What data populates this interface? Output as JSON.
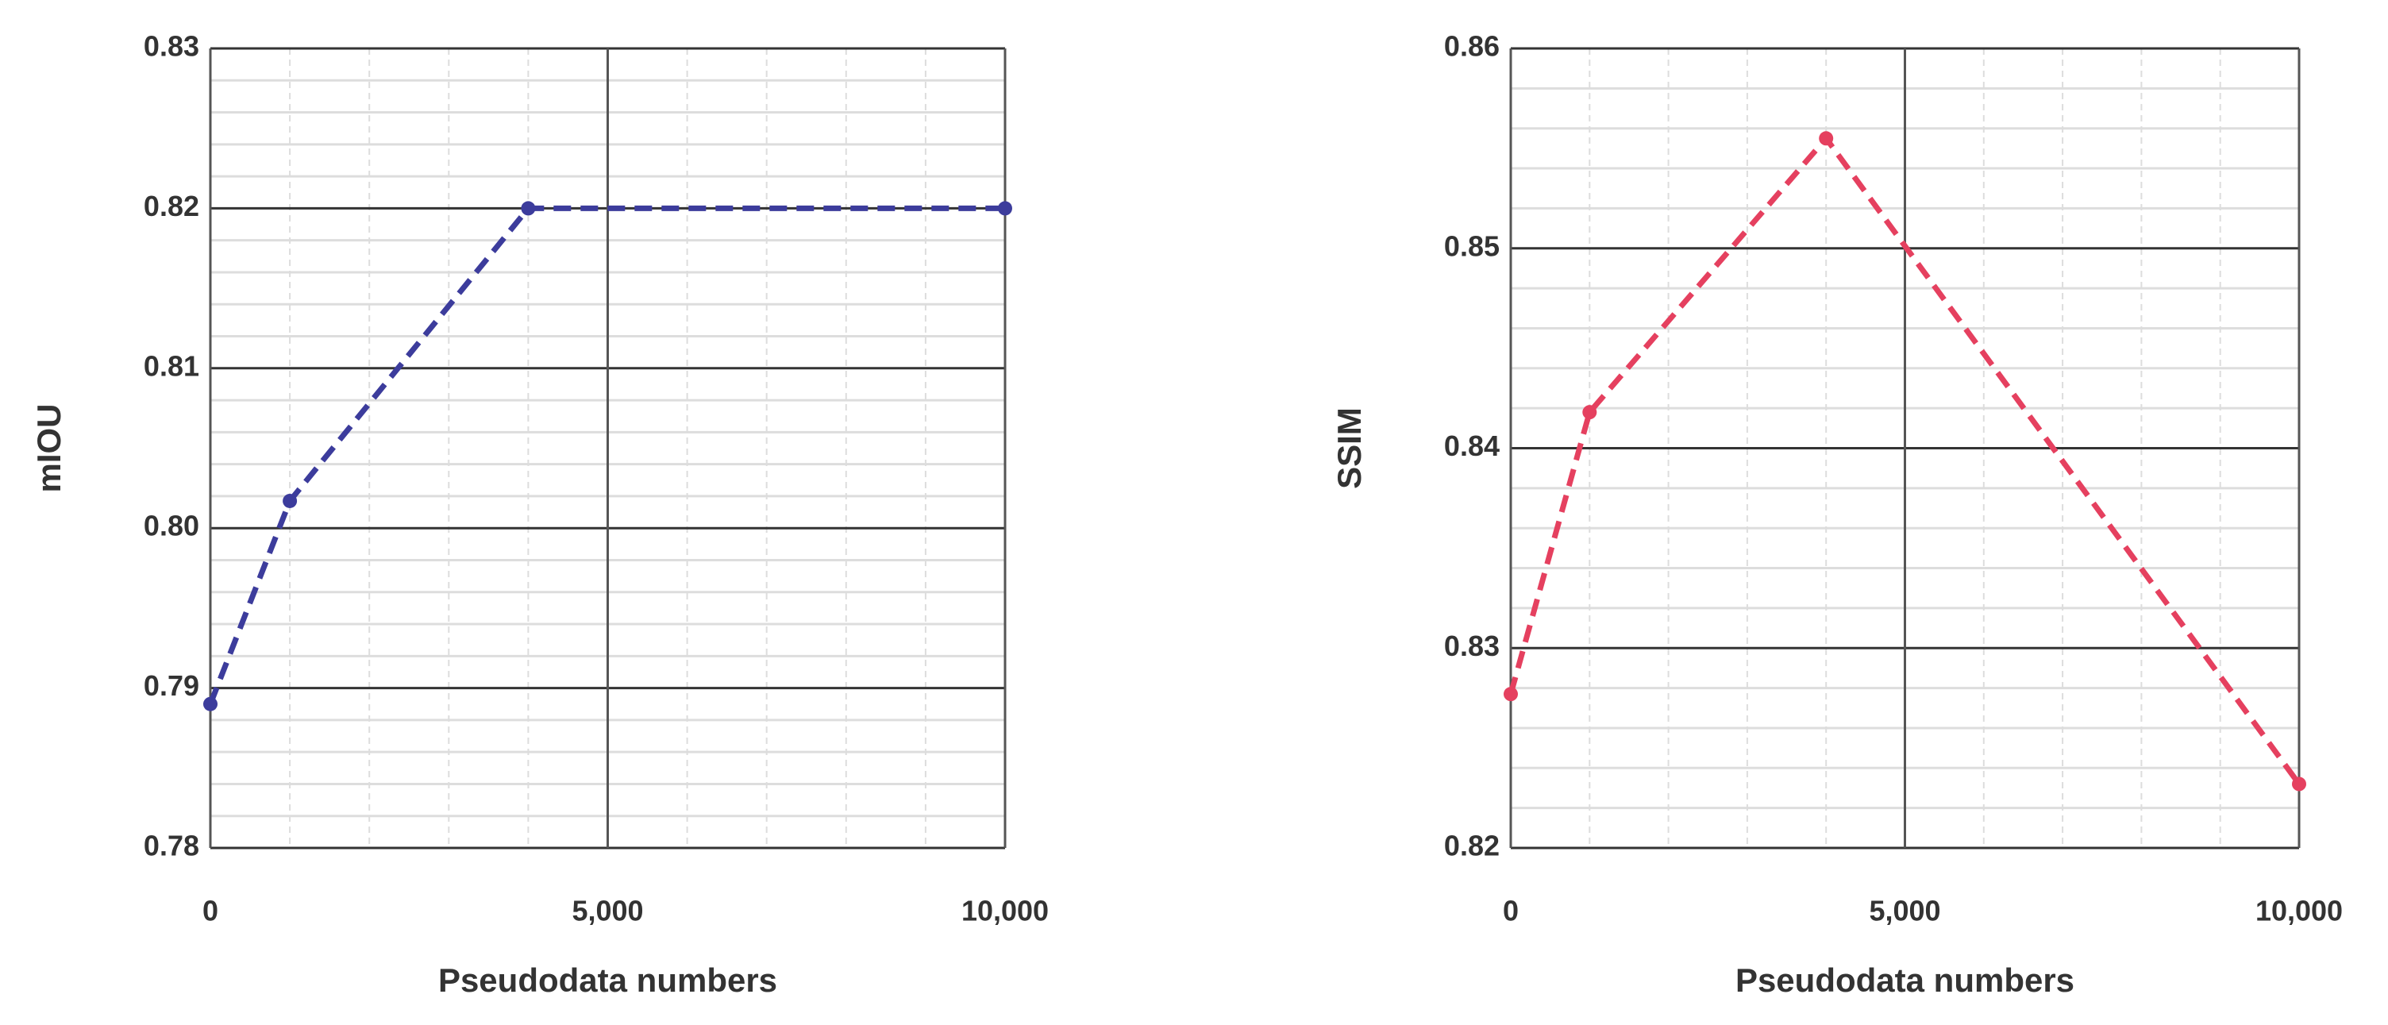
{
  "chart_data": [
    {
      "type": "line",
      "x_label": "Pseudodata numbers",
      "y_label": "mIOU",
      "x": [
        0,
        1000,
        4000,
        10000
      ],
      "series": [
        {
          "color": "#3c3c9c",
          "values": [
            0.789,
            0.8017,
            0.82,
            0.82
          ]
        }
      ],
      "xlim": [
        0,
        10000
      ],
      "xticks": [
        0,
        {
          "value": 5000,
          "label": "5,000"
        },
        {
          "value": 10000,
          "label": "10,000"
        }
      ],
      "ylim": [
        0.78,
        0.83
      ],
      "yticks": [
        0.78,
        0.79,
        {
          "value": 0.8,
          "label": "0.80"
        },
        0.81,
        0.82,
        0.83
      ],
      "grid": true
    },
    {
      "type": "line",
      "x_label": "Pseudodata numbers",
      "y_label": "SSIM",
      "x": [
        0,
        1000,
        4000,
        10000
      ],
      "series": [
        {
          "color": "#e5405f",
          "values": [
            0.8277,
            0.8418,
            0.8555,
            0.8232
          ]
        }
      ],
      "xlim": [
        0,
        10000
      ],
      "xticks": [
        0,
        {
          "value": 5000,
          "label": "5,000"
        },
        {
          "value": 10000,
          "label": "10,000"
        }
      ],
      "ylim": [
        0.82,
        0.86
      ],
      "yticks": [
        0.82,
        0.83,
        0.84,
        0.85,
        0.86
      ],
      "grid": true
    }
  ]
}
